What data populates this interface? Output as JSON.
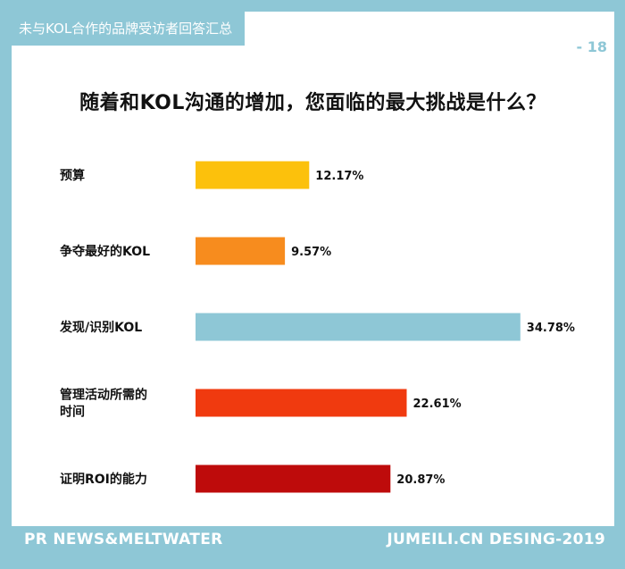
{
  "header": {
    "tag_label": "未与KOL合作的品牌受访者回答汇总",
    "page_number": "- 18"
  },
  "chart_data": {
    "type": "bar",
    "orientation": "horizontal",
    "title": "随着和KOL沟通的增加，您面临的最大挑战是什么？",
    "xlabel": "",
    "ylabel": "",
    "categories": [
      [
        "预算"
      ],
      [
        "争夺最好的KOL"
      ],
      [
        "发现/识别KOL"
      ],
      [
        "管理活动所需的",
        "时间"
      ],
      [
        "证明ROI的能力"
      ]
    ],
    "values": [
      12.17,
      9.57,
      34.78,
      22.61,
      20.87
    ],
    "value_labels": [
      "12.17%",
      "9.57%",
      "34.78%",
      "22.61%",
      "20.87%"
    ],
    "colors": [
      "#fcc10c",
      "#f78c1e",
      "#8ec7d6",
      "#f03a0f",
      "#be0b0b"
    ],
    "grid": false,
    "legend": "none"
  },
  "footer": {
    "left": "PR NEWS&MELTWATER",
    "right": "JUMEILI.CN DESING-2019"
  }
}
